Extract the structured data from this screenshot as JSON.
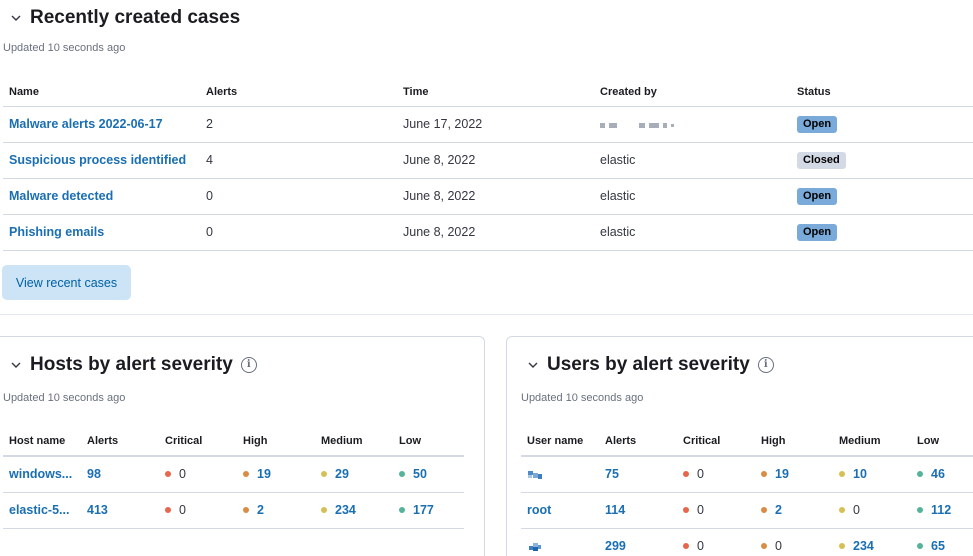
{
  "colors": {
    "critical": "#e7664c",
    "high": "#da8b45",
    "medium": "#d6bf57",
    "low": "#54b399",
    "link": "#1a6fb3",
    "open_badge": "#79aad9",
    "closed_badge": "#d3dae6"
  },
  "cases": {
    "title": "Recently created cases",
    "updated": "Updated 10 seconds ago",
    "columns": [
      "Name",
      "Alerts",
      "Time",
      "Created by",
      "Status"
    ],
    "rows": [
      {
        "name": "Malware alerts 2022-06-17",
        "alerts": "2",
        "time": "June 17, 2022",
        "created_by": "",
        "status": "Open"
      },
      {
        "name": "Suspicious process identified",
        "alerts": "4",
        "time": "June 8, 2022",
        "created_by": "elastic",
        "status": "Closed"
      },
      {
        "name": "Malware detected",
        "alerts": "0",
        "time": "June 8, 2022",
        "created_by": "elastic",
        "status": "Open"
      },
      {
        "name": "Phishing emails",
        "alerts": "0",
        "time": "June 8, 2022",
        "created_by": "elastic",
        "status": "Open"
      }
    ],
    "view_button": "View recent cases"
  },
  "hosts": {
    "title": "Hosts by alert severity",
    "updated": "Updated 10 seconds ago",
    "columns": [
      "Host name",
      "Alerts",
      "Critical",
      "High",
      "Medium",
      "Low"
    ],
    "rows": [
      {
        "name": "windows...",
        "alerts": "98",
        "critical": "0",
        "high": "19",
        "medium": "29",
        "low": "50"
      },
      {
        "name": "elastic-5...",
        "alerts": "413",
        "critical": "0",
        "high": "2",
        "medium": "234",
        "low": "177"
      }
    ]
  },
  "users": {
    "title": "Users by alert severity",
    "updated": "Updated 10 seconds ago",
    "columns": [
      "User name",
      "Alerts",
      "Critical",
      "High",
      "Medium",
      "Low"
    ],
    "rows": [
      {
        "name": "",
        "alerts": "75",
        "critical": "0",
        "high": "19",
        "medium": "10",
        "low": "46"
      },
      {
        "name": "root",
        "alerts": "114",
        "critical": "0",
        "high": "2",
        "medium": "0",
        "low": "112"
      },
      {
        "name": "",
        "alerts": "299",
        "critical": "0",
        "high": "0",
        "medium": "234",
        "low": "65"
      }
    ]
  }
}
